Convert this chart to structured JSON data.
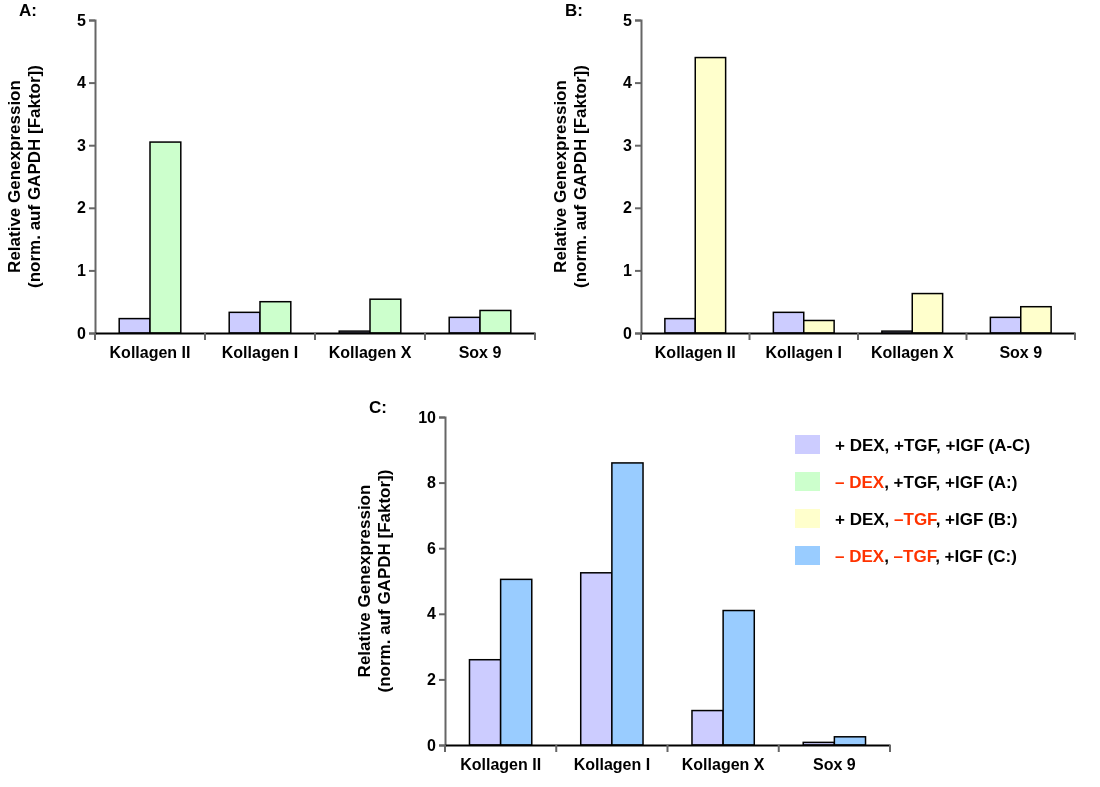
{
  "chart_data": [
    {
      "type": "bar",
      "title": "A:",
      "ylabel": "Relative Genexpression\n(norm. auf GAPDH [Faktor])",
      "categories": [
        "Kollagen II",
        "Kollagen I",
        "Kollagen X",
        "Sox 9"
      ],
      "ylim": [
        0,
        5
      ],
      "yticks": [
        0,
        1,
        2,
        3,
        4,
        5
      ],
      "legend": "bottom right",
      "series": [
        {
          "name": "+ DEX, +TGF, +IGF (A-C)",
          "color": "#ccccff",
          "values": [
            0.23,
            0.33,
            0.03,
            0.25
          ]
        },
        {
          "name": "– DEX, +TGF, +IGF (A:)",
          "color": "#ccffcc",
          "values": [
            3.05,
            0.5,
            0.54,
            0.36
          ]
        }
      ]
    },
    {
      "type": "bar",
      "title": "B:",
      "ylabel": "Relative Genexpression\n(norm. auf GAPDH [Faktor])",
      "categories": [
        "Kollagen II",
        "Kollagen I",
        "Kollagen X",
        "Sox 9"
      ],
      "ylim": [
        0,
        5
      ],
      "yticks": [
        0,
        1,
        2,
        3,
        4,
        5
      ],
      "legend": "bottom",
      "series": [
        {
          "color": "#ccccff",
          "values": [
            0.23,
            0.33,
            0.03,
            0.25
          ]
        },
        {
          "name": "+ DEX, –TGF, +IGF (B:)",
          "color": "#ffffcc",
          "values": [
            4.4,
            0.2,
            0.63,
            0.42
          ]
        }
      ]
    },
    {
      "type": "bar",
      "title": "C:",
      "ylabel": "Relative Genexpression\n(norm. auf GAPDH [Faktor])",
      "categories": [
        "Kollagen II",
        "Kollagen I",
        "Kollagen X",
        "Sox 9"
      ],
      "ylim": [
        0,
        10
      ],
      "yticks": [
        0,
        2,
        4,
        6,
        8,
        10
      ],
      "legend": "right",
      "series": [
        {
          "color": "#ccccff",
          "values": [
            2.6,
            5.25,
            1.05,
            0.08
          ]
        },
        {
          "name": "– DEX, –TGF, +IGF (C:)",
          "color": "#99ccff",
          "values": [
            5.05,
            8.6,
            4.1,
            0.25
          ]
        }
      ]
    }
  ]
}
